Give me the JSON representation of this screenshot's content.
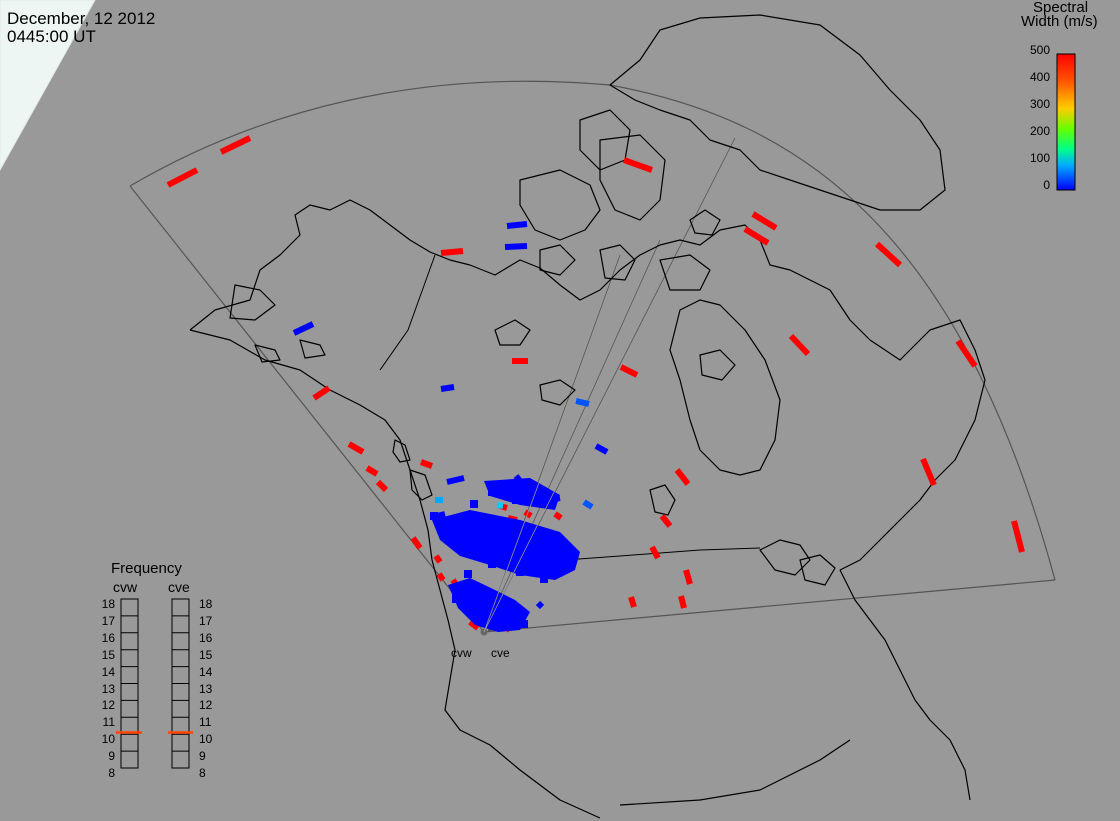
{
  "header": {
    "date": "December, 12 2012",
    "time": "0445:00 UT"
  },
  "colorbar": {
    "title_line1": "Spectral",
    "title_line2": "Width (m/s)",
    "ticks": [
      "500",
      "400",
      "300",
      "200",
      "100",
      "0"
    ],
    "colors_top_to_bottom": [
      "#ff0000",
      "#ff5500",
      "#ffaa00",
      "#ffff00",
      "#aaff00",
      "#00ff00",
      "#00ff99",
      "#00ccff",
      "#0066ff",
      "#0000ff"
    ]
  },
  "frequency": {
    "title": "Frequency",
    "radar_left": "cvw",
    "radar_right": "cve",
    "levels": [
      "18",
      "17",
      "16",
      "15",
      "14",
      "13",
      "12",
      "11",
      "10",
      "9",
      "8"
    ],
    "cvw_value": 10.6,
    "cve_value": 10.6,
    "marker_color": "#ff4400"
  },
  "radars": {
    "west": "cvw",
    "east": "cve"
  },
  "colors": {
    "background": "#999999",
    "land_outline": "#000000",
    "fov": "#555555",
    "low_width": "#0000ff",
    "high_width": "#ff0000"
  }
}
